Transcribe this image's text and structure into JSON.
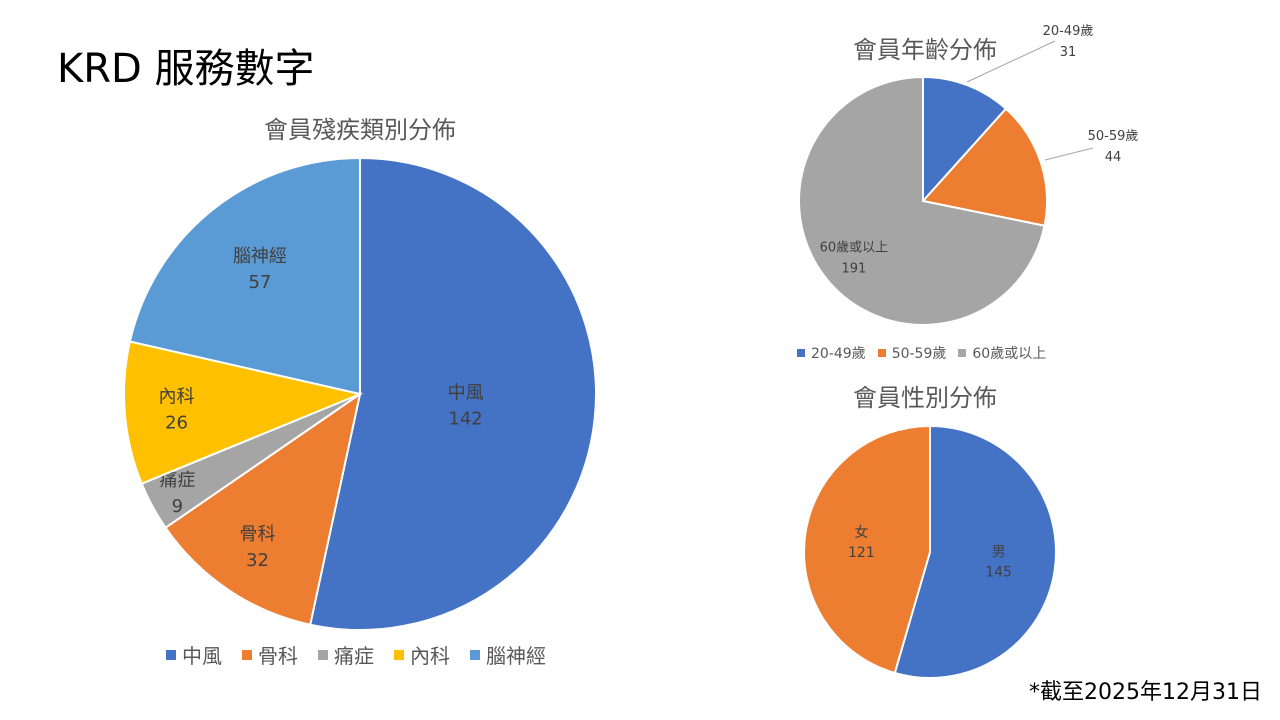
{
  "page": {
    "title": "KRD 服務數字",
    "footnote": "*截至2025年12月31日"
  },
  "chart_data": [
    {
      "type": "pie",
      "title": "會員殘疾類別分佈",
      "categories": [
        "中風",
        "骨科",
        "痛症",
        "內科",
        "腦神經"
      ],
      "values": [
        142,
        32,
        9,
        26,
        57
      ],
      "colors": [
        "#4472C4",
        "#ED7D31",
        "#A5A5A5",
        "#FFC000",
        "#5B9BD5"
      ],
      "legend": "bottom"
    },
    {
      "type": "pie",
      "title": "會員年齡分佈",
      "categories": [
        "20-49歲",
        "50-59歲",
        "60歲或以上"
      ],
      "values": [
        31,
        44,
        191
      ],
      "colors": [
        "#4472C4",
        "#ED7D31",
        "#A5A5A5"
      ],
      "legend": "bottom"
    },
    {
      "type": "pie",
      "title": "會員性別分佈",
      "categories": [
        "男",
        "女"
      ],
      "values": [
        145,
        121
      ],
      "colors": [
        "#4472C4",
        "#ED7D31"
      ],
      "legend": "none"
    }
  ]
}
